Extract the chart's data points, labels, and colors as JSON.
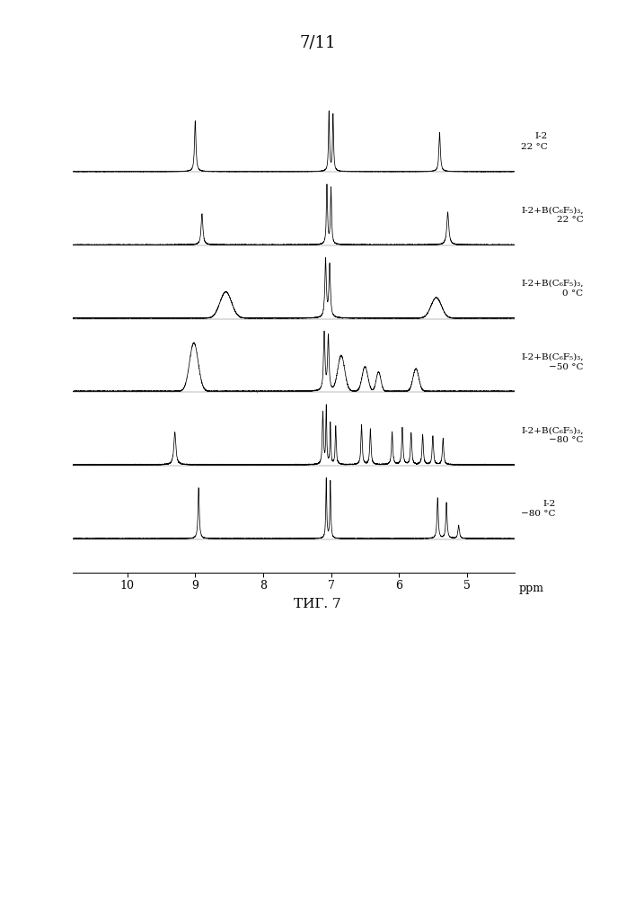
{
  "title": "7/11",
  "caption": "ΤИГ. 7",
  "x_ticks": [
    10,
    9,
    8,
    7,
    6,
    5
  ],
  "x_tick_labels": [
    "10",
    "9",
    "8",
    "7",
    "6",
    "5"
  ],
  "x_unit": "ppm",
  "spectra_labels": [
    "I-2\n22 °C",
    "I-2+B(C₆F₅)₃,\n22 °C",
    "I-2+B(C₆F₅)₃,\n0 °C",
    "I-2+B(C₆F₅)₃,\n−50 °C",
    "I-2+B(C₆F₅)₃,\n−80 °C",
    "I-2\n−80 °C"
  ],
  "background_color": "#ffffff",
  "line_color": "#000000"
}
